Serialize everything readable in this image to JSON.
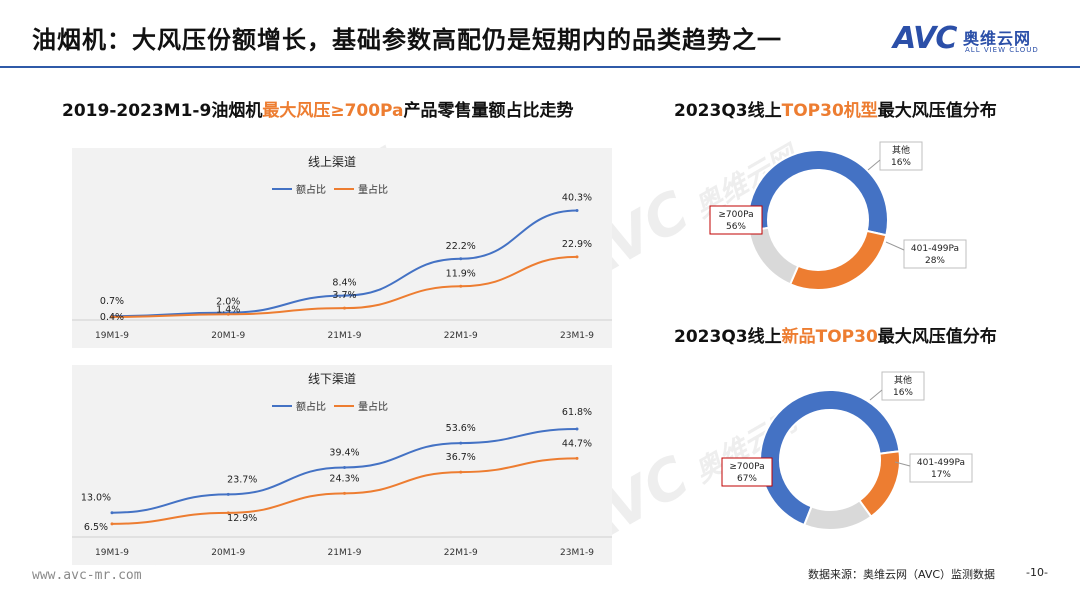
{
  "header": {
    "title": "油烟机：大风压份额增长，基础参数高配仍是短期内的品类趋势之一",
    "logo_text": "AVC",
    "logo_cn": "奥维云网",
    "logo_en": "ALL VIEW CLOUD"
  },
  "left_panel": {
    "title_prefix": "2019-2023M1-9油烟机",
    "title_highlight": "最大风压≥700Pa",
    "title_suffix": "产品零售量额占比走势"
  },
  "right_panel": {
    "top_title_prefix": "2023Q3线上",
    "top_title_highlight": "TOP30机型",
    "top_title_suffix": "最大风压值分布",
    "bottom_title_prefix": "2023Q3线上",
    "bottom_title_highlight": "新品TOP30",
    "bottom_title_suffix": "最大风压值分布"
  },
  "watermark_text": "AVC",
  "watermark_cn": "奥维云网",
  "watermark_en": "ALL VIEW CLOUD",
  "footer": {
    "url": "www.avc-mr.com",
    "source": "数据来源：奥维云网（AVC）监测数据",
    "page": "-10-"
  },
  "colors": {
    "blue": "#4472c4",
    "orange": "#ed7d31",
    "gray": "#d9d9d9",
    "accent_line": "#2f5aa8",
    "highlight_box": "#c00000"
  },
  "chart_data": [
    {
      "type": "line",
      "title": "线上渠道",
      "categories": [
        "19M1-9",
        "20M1-9",
        "21M1-9",
        "22M1-9",
        "23M1-9"
      ],
      "series": [
        {
          "name": "额占比",
          "values": [
            0.7,
            2.0,
            8.4,
            22.2,
            40.3
          ],
          "labels": [
            "0.7%",
            "2.0%",
            "8.4%",
            "22.2%",
            "40.3%"
          ]
        },
        {
          "name": "量占比",
          "values": [
            0.4,
            1.4,
            3.7,
            11.9,
            22.9
          ],
          "labels": [
            "0.4%",
            "1.4%",
            "3.7%",
            "11.9%",
            "22.9%"
          ]
        }
      ],
      "ylim": [
        0,
        45
      ],
      "legend": "top"
    },
    {
      "type": "line",
      "title": "线下渠道",
      "categories": [
        "19M1-9",
        "20M1-9",
        "21M1-9",
        "22M1-9",
        "23M1-9"
      ],
      "series": [
        {
          "name": "额占比",
          "values": [
            13.0,
            23.7,
            39.4,
            53.6,
            61.8
          ],
          "labels": [
            "13.0%",
            "23.7%",
            "39.4%",
            "53.6%",
            "61.8%"
          ]
        },
        {
          "name": "量占比",
          "values": [
            6.5,
            12.9,
            24.3,
            36.7,
            44.7
          ],
          "labels": [
            "6.5%",
            "12.9%",
            "24.3%",
            "36.7%",
            "44.7%"
          ]
        }
      ],
      "ylim": [
        0,
        70
      ],
      "legend": "top"
    },
    {
      "type": "pie",
      "variant": "donut",
      "slices": [
        {
          "label": "≥700Pa",
          "value": 56,
          "text": "56%",
          "color": "#4472c4"
        },
        {
          "label": "401-499Pa",
          "value": 28,
          "text": "28%",
          "color": "#ed7d31"
        },
        {
          "label": "其他",
          "value": 16,
          "text": "16%",
          "color": "#d9d9d9"
        }
      ]
    },
    {
      "type": "pie",
      "variant": "donut",
      "slices": [
        {
          "label": "≥700Pa",
          "value": 67,
          "text": "67%",
          "color": "#4472c4"
        },
        {
          "label": "401-499Pa",
          "value": 17,
          "text": "17%",
          "color": "#ed7d31"
        },
        {
          "label": "其他",
          "value": 16,
          "text": "16%",
          "color": "#d9d9d9"
        }
      ]
    }
  ]
}
